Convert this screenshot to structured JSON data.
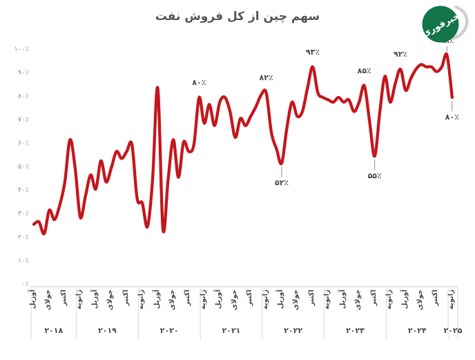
{
  "title": "سهم چین از کل فروش نفت",
  "logo": {
    "text": "خبرفوری",
    "bg_color": "#13744a",
    "swoosh_color": "#d0d0d0"
  },
  "colors": {
    "line": "#c4161c",
    "axis_line": "#cccccc",
    "separator": "#d9d9d9",
    "tick_text": "#8f8f94",
    "axis_text": "#4a4a4f",
    "annotation_text": "#46464e",
    "leader_line": "#8a8a8a",
    "title_text": "#55555d",
    "background": "#ffffff"
  },
  "chart_data": {
    "type": "line",
    "title": "سهم چین از کل فروش نفت",
    "unit": "percent",
    "grid": false,
    "legend": false,
    "ylim": [
      0,
      100
    ],
    "y_ticks": [
      100,
      90,
      80,
      70,
      60,
      50,
      40,
      30,
      20,
      10,
      0
    ],
    "y_tick_labels": [
      "۱۰۰٪",
      "۹۰٪",
      "۸۰٪",
      "۷۰٪",
      "۶۰٪",
      "۵۰٪",
      "۴۰٪",
      "۳۰٪",
      "۲۰٪",
      "۱۰٪",
      "۰٪"
    ],
    "months": [
      "2018-04",
      "2018-05",
      "2018-06",
      "2018-07",
      "2018-08",
      "2018-09",
      "2018-10",
      "2018-11",
      "2018-12",
      "2019-01",
      "2019-02",
      "2019-03",
      "2019-04",
      "2019-05",
      "2019-06",
      "2019-07",
      "2019-08",
      "2019-09",
      "2019-10",
      "2019-11",
      "2019-12",
      "2020-01",
      "2020-02",
      "2020-03",
      "2020-04",
      "2020-05",
      "2020-06",
      "2020-07",
      "2020-08",
      "2020-09",
      "2020-10",
      "2020-11",
      "2020-12",
      "2021-01",
      "2021-02",
      "2021-03",
      "2021-04",
      "2021-05",
      "2021-06",
      "2021-07",
      "2021-08",
      "2021-09",
      "2021-10",
      "2021-11",
      "2021-12",
      "2022-01",
      "2022-02",
      "2022-03",
      "2022-04",
      "2022-05",
      "2022-06",
      "2022-07",
      "2022-08",
      "2022-09",
      "2022-10",
      "2022-11",
      "2022-12",
      "2023-01",
      "2023-02",
      "2023-03",
      "2023-04",
      "2023-05",
      "2023-06",
      "2023-07",
      "2023-08",
      "2023-09",
      "2023-10",
      "2023-11",
      "2023-12",
      "2024-01",
      "2024-02",
      "2024-03",
      "2024-04",
      "2024-05",
      "2024-06",
      "2024-07",
      "2024-08",
      "2024-09",
      "2024-10",
      "2024-11",
      "2024-12",
      "2025-01"
    ],
    "values": [
      26,
      27,
      22,
      32,
      28,
      34,
      44,
      62,
      50,
      29,
      38,
      47,
      41,
      53,
      44,
      50,
      57,
      54,
      57,
      60,
      37,
      35,
      25,
      45,
      84,
      24,
      45,
      62,
      46,
      61,
      57,
      60,
      80,
      69,
      77,
      68,
      78,
      80,
      74,
      63,
      71,
      68,
      72,
      76,
      81,
      82,
      65,
      58,
      52,
      67,
      78,
      72,
      74,
      84,
      93,
      82,
      80,
      79,
      78,
      80,
      78,
      79,
      74,
      78,
      85,
      70,
      55,
      74,
      89,
      78,
      86,
      92,
      83,
      88,
      92,
      94,
      93,
      93,
      91,
      93,
      98,
      80
    ],
    "x_groups": [
      {
        "year": "۲۰۱۸",
        "months": [
          {
            "label": "آوریل",
            "index": 0
          },
          {
            "label": "جولای",
            "index": 3
          },
          {
            "label": "اکتبر",
            "index": 6
          }
        ]
      },
      {
        "year": "۲۰۱۹",
        "months": [
          {
            "label": "ژانویه",
            "index": 9
          },
          {
            "label": "آوریل",
            "index": 12
          },
          {
            "label": "جولای",
            "index": 15
          },
          {
            "label": "اکتبر",
            "index": 18
          }
        ]
      },
      {
        "year": "۲۰۲۰",
        "months": [
          {
            "label": "ژانویه",
            "index": 21
          },
          {
            "label": "آوریل",
            "index": 24
          },
          {
            "label": "جولای",
            "index": 27
          },
          {
            "label": "اکتبر",
            "index": 30
          }
        ]
      },
      {
        "year": "۲۰۲۱",
        "months": [
          {
            "label": "ژانویه",
            "index": 33
          },
          {
            "label": "آوریل",
            "index": 36
          },
          {
            "label": "جولای",
            "index": 39
          },
          {
            "label": "اکتبر",
            "index": 42
          }
        ]
      },
      {
        "year": "۲۰۲۲",
        "months": [
          {
            "label": "ژانویه",
            "index": 45
          },
          {
            "label": "آوریل",
            "index": 48
          },
          {
            "label": "جولای",
            "index": 51
          },
          {
            "label": "اکتبر",
            "index": 54
          }
        ]
      },
      {
        "year": "۲۰۲۳",
        "months": [
          {
            "label": "ژانویه",
            "index": 57
          },
          {
            "label": "آوریل",
            "index": 60
          },
          {
            "label": "جولای",
            "index": 63
          },
          {
            "label": "اکتبر",
            "index": 66
          }
        ]
      },
      {
        "year": "۲۰۲۴",
        "months": [
          {
            "label": "ژانویه",
            "index": 69
          },
          {
            "label": "آوریل",
            "index": 72
          },
          {
            "label": "جولای",
            "index": 75
          },
          {
            "label": "اکتبر",
            "index": 78
          }
        ]
      },
      {
        "year": "۲۰۲۵",
        "months": [
          {
            "label": "ژانویه",
            "index": 81
          }
        ]
      }
    ],
    "annotations": [
      {
        "label": "۸۰٪",
        "index": 32,
        "value": 80,
        "placement": "above",
        "leader": false
      },
      {
        "label": "۸۲٪",
        "index": 45,
        "value": 82,
        "placement": "above",
        "leader": false
      },
      {
        "label": "۵۲٪",
        "index": 48,
        "value": 52,
        "placement": "below",
        "leader": true
      },
      {
        "label": "۹۳٪",
        "index": 54,
        "value": 93,
        "placement": "above",
        "leader": false
      },
      {
        "label": "۸۵٪",
        "index": 64,
        "value": 85,
        "placement": "above",
        "leader": false
      },
      {
        "label": "۵۵٪",
        "index": 66,
        "value": 55,
        "placement": "below",
        "leader": true
      },
      {
        "label": "۹۲٪",
        "index": 71,
        "value": 92,
        "placement": "above",
        "leader": false
      },
      {
        "label": "۹۸٪",
        "index": 80,
        "value": 98,
        "placement": "above",
        "leader": true
      },
      {
        "label": "۸۰٪",
        "index": 81,
        "value": 80,
        "placement": "below",
        "leader": true
      }
    ]
  }
}
